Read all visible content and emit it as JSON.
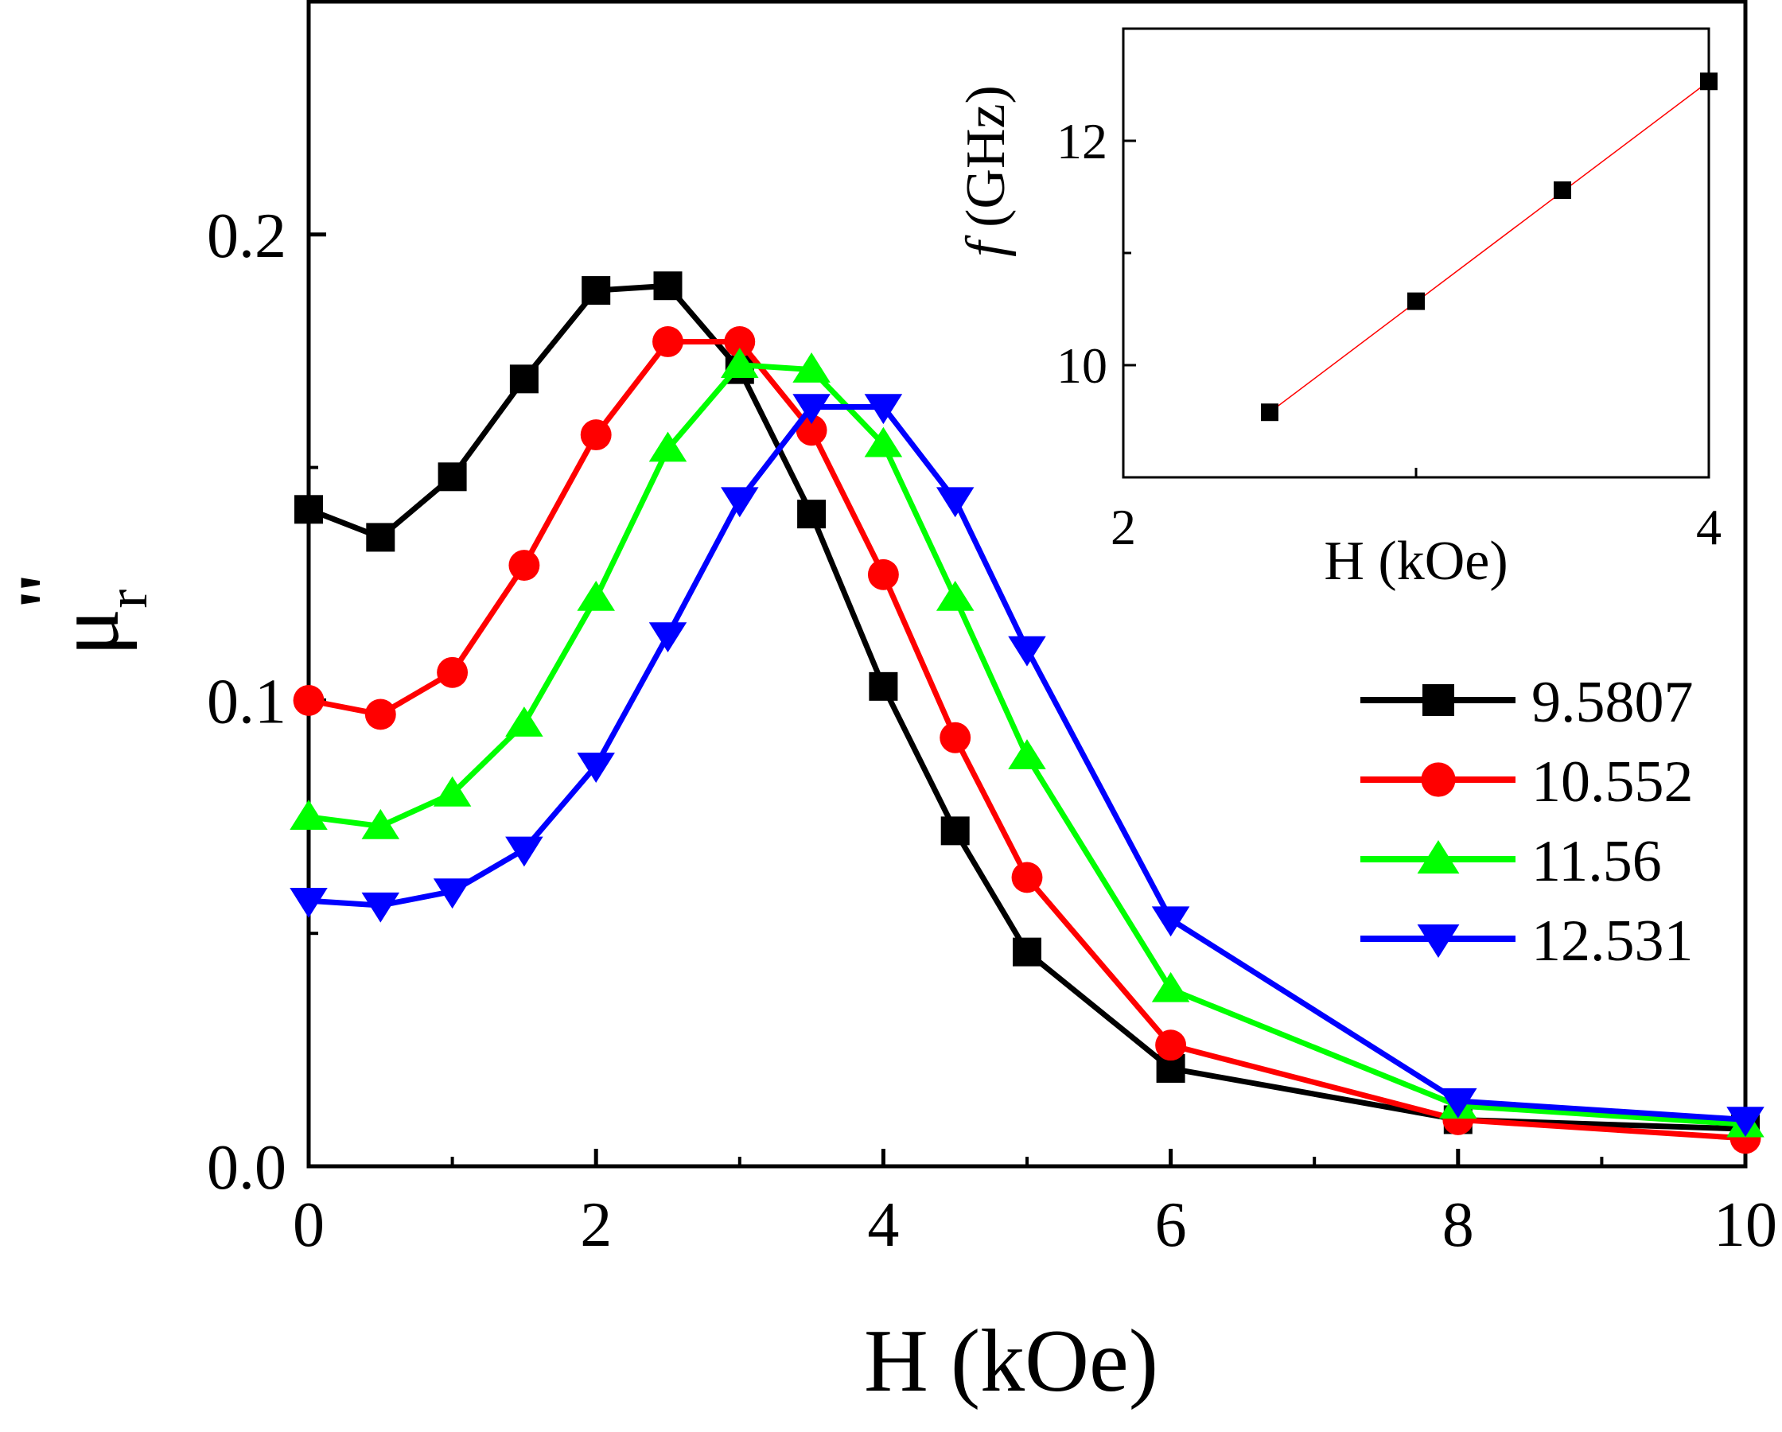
{
  "chart_data": [
    {
      "type": "line",
      "xlabel": "H (kOe)",
      "ylabel_main": "μ",
      "ylabel_sub": "r",
      "ylabel_sup": "\"",
      "xlim": [
        0,
        10
      ],
      "ylim": [
        0,
        0.25
      ],
      "x_ticks": [
        "0",
        "2",
        "4",
        "6",
        "8",
        "10"
      ],
      "y_ticks": [
        "0.0",
        "0.1",
        "0.2"
      ],
      "x_tick_values": [
        0,
        2,
        4,
        6,
        8,
        10
      ],
      "x_minor_tick_values": [
        1,
        3,
        5,
        7,
        9
      ],
      "y_tick_values": [
        0,
        0.1,
        0.2
      ],
      "y_minor_tick_values": [
        0.05,
        0.15
      ],
      "legend_position": "middle-right",
      "x": [
        0,
        0.5,
        1,
        1.5,
        2,
        2.5,
        3,
        3.5,
        4,
        4.5,
        5,
        6,
        8,
        10
      ],
      "series": [
        {
          "name": "9.5807",
          "color": "#000000",
          "marker": "square",
          "values": [
            0.141,
            0.135,
            0.148,
            0.169,
            0.188,
            0.189,
            0.171,
            0.14,
            0.103,
            0.072,
            0.046,
            0.021,
            0.01,
            0.008
          ]
        },
        {
          "name": "10.552",
          "color": "#ff0000",
          "marker": "circle",
          "values": [
            0.1,
            0.097,
            0.106,
            0.129,
            0.157,
            0.177,
            0.177,
            0.158,
            0.127,
            0.092,
            0.062,
            0.026,
            0.01,
            0.006
          ]
        },
        {
          "name": "11.56",
          "color": "#00ff00",
          "marker": "triangle-up",
          "values": [
            0.075,
            0.073,
            0.08,
            0.095,
            0.122,
            0.154,
            0.172,
            0.171,
            0.155,
            0.122,
            0.088,
            0.038,
            0.013,
            0.009
          ]
        },
        {
          "name": "12.531",
          "color": "#0000ff",
          "marker": "triangle-down",
          "values": [
            0.057,
            0.056,
            0.059,
            0.068,
            0.086,
            0.114,
            0.143,
            0.163,
            0.163,
            0.143,
            0.111,
            0.053,
            0.014,
            0.01
          ]
        }
      ]
    },
    {
      "type": "scatter",
      "xlabel": "H  (kOe)",
      "ylabel_italic": "f",
      "ylabel_rest": " (GHz)",
      "xlim": [
        2,
        4
      ],
      "ylim": [
        9,
        13
      ],
      "x_ticks": [
        "2",
        "4"
      ],
      "y_ticks": [
        "10",
        "12"
      ],
      "x_tick_values": [
        2,
        4
      ],
      "x_minor_tick_values": [
        3
      ],
      "y_tick_values": [
        10,
        12
      ],
      "y_minor_tick_values": [
        11
      ],
      "points": [
        {
          "x": 2.5,
          "y": 9.58
        },
        {
          "x": 3.0,
          "y": 10.57
        },
        {
          "x": 3.5,
          "y": 11.56
        },
        {
          "x": 4.0,
          "y": 12.53
        }
      ],
      "fit_line": {
        "x": [
          2.5,
          4.0
        ],
        "y": [
          9.58,
          12.53
        ],
        "color": "#ff0000"
      },
      "marker_color": "#000000"
    }
  ]
}
